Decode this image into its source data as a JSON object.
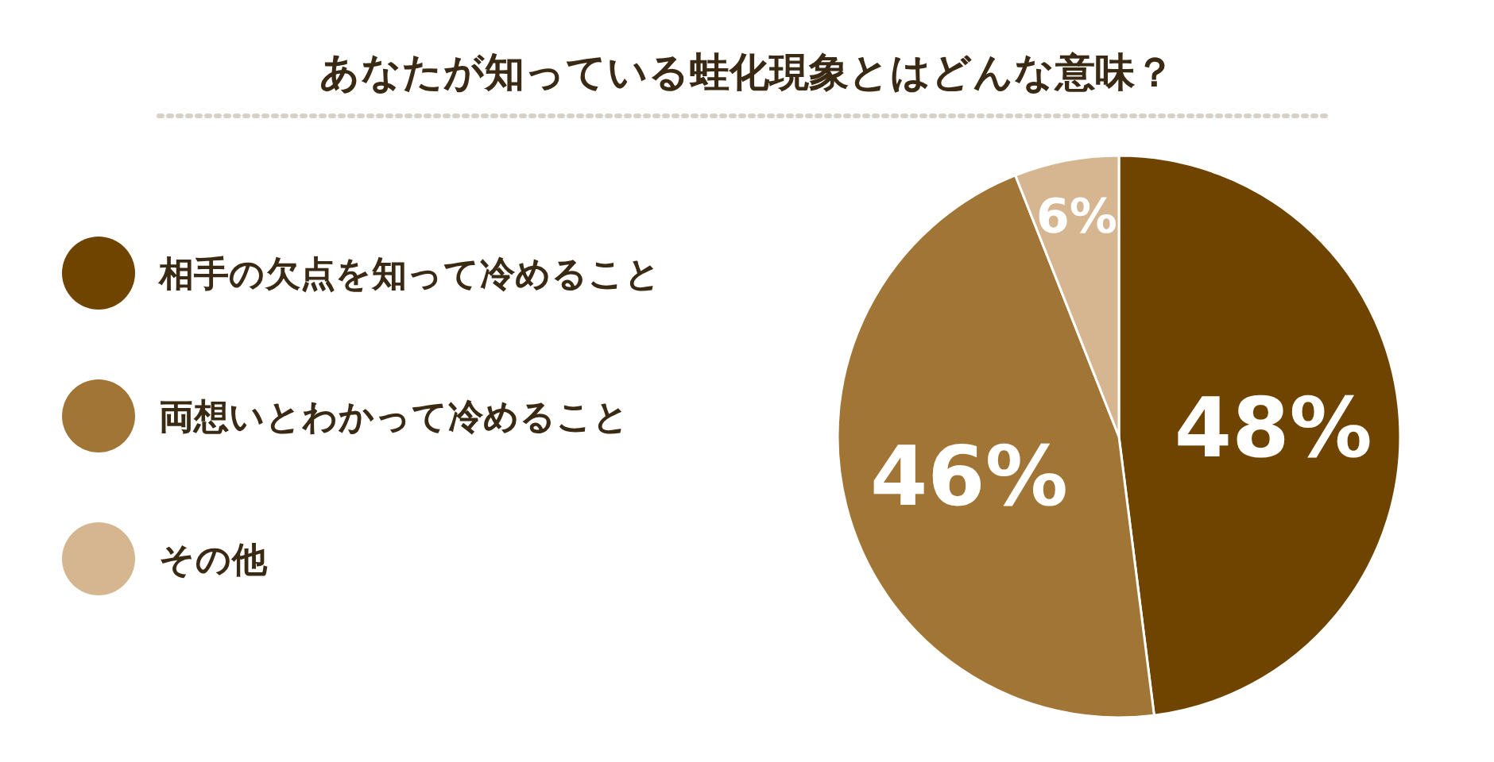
{
  "chart_data": {
    "type": "pie",
    "title": "あなたが知っている蛙化現象とはどんな意味？",
    "categories": [
      "相手の欠点を知って冷めること",
      "両想いとわかって冷めること",
      "その他"
    ],
    "values": [
      48,
      46,
      6
    ],
    "colors": [
      "#6e4400",
      "#a07536",
      "#d5b690"
    ],
    "value_labels": [
      "48%",
      "46%",
      "6%"
    ],
    "legend": "left"
  }
}
